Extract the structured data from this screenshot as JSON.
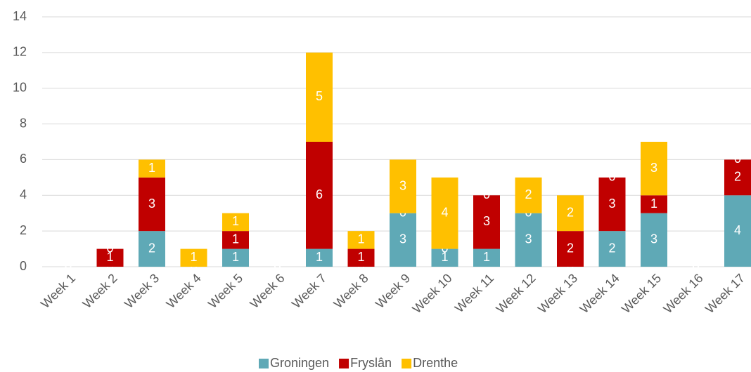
{
  "chart_data": {
    "type": "bar",
    "stacked": true,
    "categories": [
      "Week 1",
      "Week 2",
      "Week 3",
      "Week 4",
      "Week 5",
      "Week 6",
      "Week 7",
      "Week 8",
      "Week 9",
      "Week 10",
      "Week 11",
      "Week 12",
      "Week 13",
      "Week 14",
      "Week 15",
      "Week 16",
      "Week 17"
    ],
    "series": [
      {
        "name": "Groningen",
        "color": "#5fa9b6",
        "values": [
          0,
          0,
          2,
          0,
          1,
          0,
          1,
          0,
          3,
          1,
          1,
          3,
          0,
          2,
          3,
          0,
          4
        ]
      },
      {
        "name": "Fryslân",
        "color": "#c00000",
        "values": [
          0,
          1,
          3,
          0,
          1,
          0,
          6,
          1,
          0,
          0,
          3,
          0,
          2,
          3,
          1,
          0,
          2
        ]
      },
      {
        "name": "Drenthe",
        "color": "#ffc000",
        "values": [
          0,
          0,
          1,
          1,
          1,
          0,
          5,
          1,
          3,
          4,
          0,
          2,
          2,
          0,
          3,
          0,
          0
        ]
      }
    ],
    "ylim": [
      0,
      14
    ],
    "yticks": [
      0,
      2,
      4,
      6,
      8,
      10,
      12,
      14
    ],
    "grid": true,
    "legend": "bottom"
  }
}
